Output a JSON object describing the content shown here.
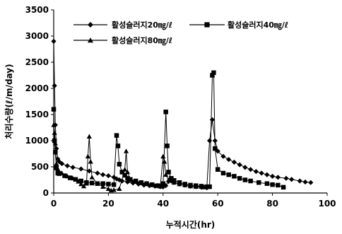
{
  "chart_data": {
    "type": "line",
    "title": "",
    "xlabel": "누적시간(hr)",
    "ylabel": "처리수량(ℓ/m/day)",
    "xlim": [
      0,
      100
    ],
    "ylim": [
      0,
      3500
    ],
    "x_ticks": [
      "0",
      "20",
      "40",
      "60",
      "80",
      "100"
    ],
    "y_ticks": [
      "0",
      "500",
      "1000",
      "1500",
      "2000",
      "2500",
      "3000",
      "3500"
    ],
    "grid": false,
    "legend_position": "top",
    "series": [
      {
        "name": "활성슬러지20㎎/ℓ",
        "marker": "diamond",
        "points": [
          [
            0,
            2900
          ],
          [
            0.3,
            2050
          ],
          [
            0.6,
            1300
          ],
          [
            1,
            850
          ],
          [
            1.5,
            650
          ],
          [
            2,
            600
          ],
          [
            3,
            560
          ],
          [
            5,
            520
          ],
          [
            7,
            490
          ],
          [
            10,
            460
          ],
          [
            13,
            420
          ],
          [
            16,
            380
          ],
          [
            18,
            350
          ],
          [
            20,
            330
          ],
          [
            22,
            300
          ],
          [
            23,
            270
          ],
          [
            24,
            250
          ],
          [
            25,
            230
          ],
          [
            27,
            210
          ],
          [
            29,
            190
          ],
          [
            31,
            170
          ],
          [
            33,
            150
          ],
          [
            35,
            140
          ],
          [
            37,
            130
          ],
          [
            39,
            120
          ],
          [
            40,
            115
          ],
          [
            41,
            140
          ],
          [
            42,
            220
          ],
          [
            43,
            230
          ],
          [
            44,
            200
          ],
          [
            46,
            170
          ],
          [
            48,
            150
          ],
          [
            50,
            130
          ],
          [
            52,
            120
          ],
          [
            54,
            110
          ],
          [
            56,
            100
          ],
          [
            57,
            1000
          ],
          [
            58,
            1400
          ],
          [
            59,
            1000
          ],
          [
            60,
            800
          ],
          [
            62,
            700
          ],
          [
            64,
            640
          ],
          [
            66,
            590
          ],
          [
            68,
            540
          ],
          [
            70,
            490
          ],
          [
            72,
            450
          ],
          [
            74,
            410
          ],
          [
            76,
            380
          ],
          [
            78,
            350
          ],
          [
            80,
            320
          ],
          [
            82,
            300
          ],
          [
            85,
            280
          ],
          [
            87,
            260
          ],
          [
            90,
            230
          ],
          [
            92,
            210
          ],
          [
            94,
            200
          ]
        ]
      },
      {
        "name": "활성슬러지40㎎/ℓ",
        "marker": "square",
        "points": [
          [
            0,
            1600
          ],
          [
            0.3,
            1000
          ],
          [
            0.6,
            780
          ],
          [
            1,
            480
          ],
          [
            1.5,
            380
          ],
          [
            2,
            370
          ],
          [
            4,
            330
          ],
          [
            6,
            290
          ],
          [
            8,
            260
          ],
          [
            10,
            230
          ],
          [
            12,
            200
          ],
          [
            14,
            190
          ],
          [
            16,
            180
          ],
          [
            18,
            180
          ],
          [
            20,
            170
          ],
          [
            22,
            160
          ],
          [
            23,
            1100
          ],
          [
            23.5,
            900
          ],
          [
            24,
            550
          ],
          [
            25,
            400
          ],
          [
            26,
            340
          ],
          [
            27,
            280
          ],
          [
            28,
            260
          ],
          [
            30,
            230
          ],
          [
            32,
            200
          ],
          [
            34,
            180
          ],
          [
            36,
            160
          ],
          [
            38,
            140
          ],
          [
            39,
            130
          ],
          [
            40,
            180
          ],
          [
            41,
            1550
          ],
          [
            41.5,
            900
          ],
          [
            42,
            400
          ],
          [
            43,
            280
          ],
          [
            44,
            240
          ],
          [
            46,
            200
          ],
          [
            48,
            170
          ],
          [
            50,
            150
          ],
          [
            52,
            140
          ],
          [
            54,
            130
          ],
          [
            56,
            120
          ],
          [
            57,
            120
          ],
          [
            58,
            2250
          ],
          [
            58.5,
            2300
          ],
          [
            59,
            850
          ],
          [
            60,
            450
          ],
          [
            62,
            380
          ],
          [
            64,
            350
          ],
          [
            66,
            320
          ],
          [
            68,
            280
          ],
          [
            70,
            250
          ],
          [
            72,
            230
          ],
          [
            75,
            200
          ],
          [
            78,
            180
          ],
          [
            80,
            160
          ],
          [
            82,
            150
          ],
          [
            84,
            110
          ]
        ]
      },
      {
        "name": "활성슬러지80㎎/ℓ",
        "marker": "triangle",
        "points": [
          [
            0,
            1300
          ],
          [
            0.3,
            1150
          ],
          [
            0.6,
            950
          ],
          [
            1,
            560
          ],
          [
            1.5,
            460
          ],
          [
            3,
            380
          ],
          [
            5,
            320
          ],
          [
            7,
            280
          ],
          [
            9,
            220
          ],
          [
            10,
            170
          ],
          [
            11,
            130
          ],
          [
            12,
            180
          ],
          [
            12.5,
            700
          ],
          [
            13,
            1080
          ],
          [
            13.5,
            600
          ],
          [
            14,
            300
          ],
          [
            16,
            180
          ],
          [
            18,
            120
          ],
          [
            20,
            80
          ],
          [
            21,
            50
          ],
          [
            22,
            60
          ],
          [
            24,
            80
          ],
          [
            26,
            450
          ],
          [
            26.5,
            800
          ],
          [
            27,
            400
          ],
          [
            28,
            250
          ],
          [
            30,
            220
          ],
          [
            32,
            190
          ],
          [
            34,
            170
          ],
          [
            36,
            150
          ],
          [
            38,
            140
          ],
          [
            39,
            130
          ],
          [
            40,
            700
          ],
          [
            40.5,
            600
          ],
          [
            41,
            350
          ],
          [
            42,
            250
          ],
          [
            44,
            200
          ],
          [
            46,
            170
          ],
          [
            48,
            150
          ],
          [
            50,
            130
          ],
          [
            52,
            120
          ],
          [
            54,
            120
          ],
          [
            55,
            110
          ]
        ]
      }
    ]
  }
}
